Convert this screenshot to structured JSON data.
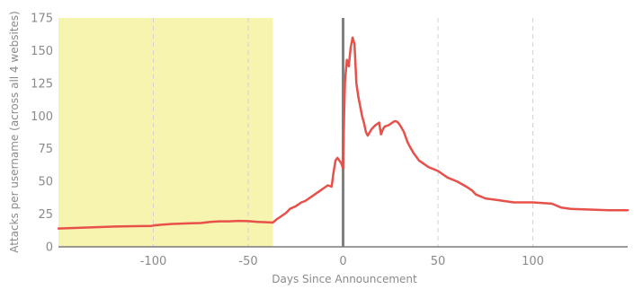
{
  "chart_data": {
    "type": "line",
    "xlabel": "Days Since Announcement",
    "ylabel": "Attacks per username (across all 4 websites)",
    "xlim": [
      -150,
      150
    ],
    "ylim": [
      0,
      175
    ],
    "x_ticks": [
      -100,
      -50,
      0,
      50,
      100
    ],
    "y_ticks": [
      0,
      25,
      50,
      75,
      100,
      125,
      150,
      175
    ],
    "grid": "vertical dashed",
    "highlight_region": {
      "x_start": -150,
      "x_end": -37,
      "color": "#f7f4b0"
    },
    "zero_line": {
      "x": 0,
      "color": "#808080"
    },
    "series": [
      {
        "color": "#e8504a",
        "x": [
          -150,
          -140,
          -130,
          -120,
          -110,
          -101,
          -99,
          -95,
          -90,
          -80,
          -75,
          -70,
          -65,
          -60,
          -55,
          -50,
          -45,
          -40,
          -37,
          -35,
          -33,
          -30,
          -28,
          -25,
          -22,
          -20,
          -18,
          -15,
          -12,
          -10,
          -8,
          -6,
          -5,
          -4,
          -3,
          -2,
          -1,
          0,
          0.5,
          1,
          2,
          3,
          4,
          5,
          6,
          7,
          8,
          10,
          11,
          12,
          13,
          15,
          17,
          19,
          20,
          21,
          22,
          24,
          25,
          26,
          27,
          28,
          29,
          30,
          32,
          34,
          35,
          37,
          40,
          45,
          50,
          55,
          60,
          65,
          68,
          70,
          75,
          80,
          85,
          90,
          100,
          110,
          115,
          120,
          130,
          140,
          150
        ],
        "y": [
          14,
          14.5,
          15,
          15.5,
          15.8,
          16,
          16.5,
          17,
          17.5,
          18,
          18.2,
          19,
          19.5,
          19.5,
          19.8,
          19.6,
          19,
          18.8,
          18.5,
          21,
          23,
          26,
          29,
          31,
          34,
          35,
          37,
          40,
          43,
          45,
          47,
          46,
          57,
          66,
          68,
          66,
          64,
          60,
          100,
          126,
          143,
          138,
          152,
          160,
          155,
          125,
          115,
          100,
          95,
          88,
          85,
          90,
          93,
          95,
          86,
          90,
          92,
          93,
          94,
          95,
          96,
          96,
          95,
          93,
          88,
          80,
          77,
          72,
          66,
          61,
          58,
          53,
          50,
          46,
          43,
          40,
          37,
          36,
          35,
          34,
          34,
          33,
          30,
          29,
          28.5,
          28,
          28
        ]
      }
    ]
  }
}
